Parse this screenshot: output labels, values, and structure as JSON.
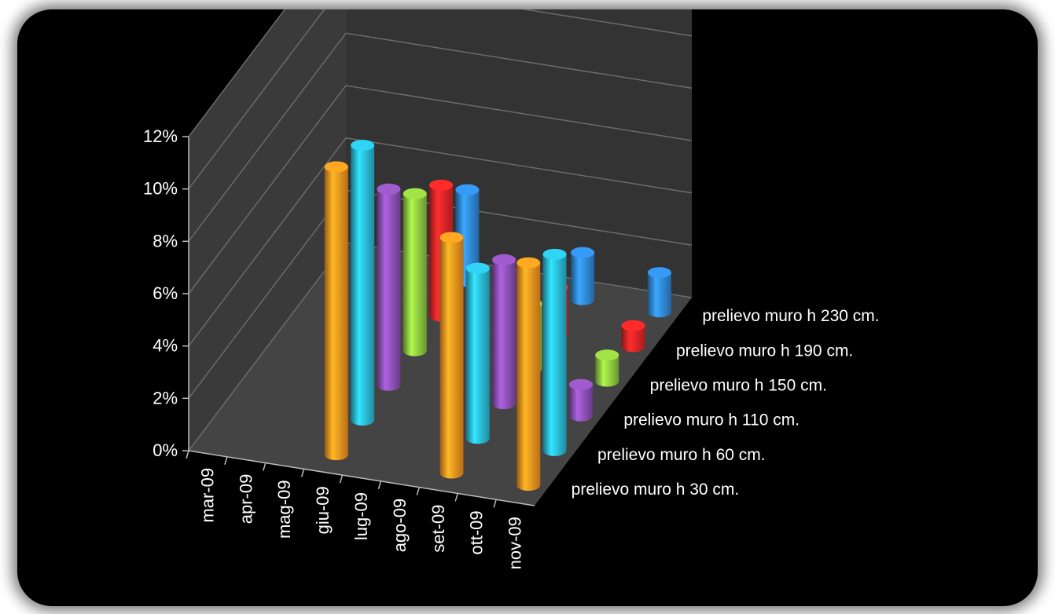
{
  "chart_data": {
    "type": "bar",
    "variant": "3d-column",
    "categories": [
      "mar-09",
      "apr-09",
      "mag-09",
      "giu-09",
      "lug-09",
      "ago-09",
      "set-09",
      "ott-09",
      "nov-09"
    ],
    "y_ticks": [
      "0%",
      "2%",
      "4%",
      "6%",
      "8%",
      "10%",
      "12%"
    ],
    "ylim": [
      0,
      12
    ],
    "y_unit": "%",
    "grid": true,
    "legend_placement": "right",
    "series": [
      {
        "name": "prelievo muro h 30 cm.",
        "color": "#f7931e",
        "values": [
          null,
          null,
          null,
          11,
          null,
          null,
          9,
          null,
          8.5
        ]
      },
      {
        "name": "prelievo muro h 60 cm.",
        "color": "#29b8d6",
        "values": [
          null,
          null,
          null,
          10.5,
          null,
          null,
          6.5,
          null,
          7.5
        ]
      },
      {
        "name": "prelievo muro h 110 cm.",
        "color": "#8b4fb3",
        "values": [
          null,
          null,
          null,
          7.5,
          null,
          null,
          5.5,
          null,
          1.2
        ]
      },
      {
        "name": "prelievo muro h 150 cm.",
        "color": "#8dc63f",
        "values": [
          null,
          null,
          null,
          6,
          null,
          null,
          2.5,
          null,
          1
        ]
      },
      {
        "name": "prelievo muro h 190 cm.",
        "color": "#e02525",
        "values": [
          null,
          null,
          null,
          5,
          null,
          null,
          1.8,
          null,
          0.8
        ]
      },
      {
        "name": "prelievo muro h 230 cm.",
        "color": "#2f86d6",
        "values": [
          null,
          null,
          null,
          3.5,
          null,
          null,
          1.8,
          null,
          1.5
        ]
      }
    ]
  }
}
